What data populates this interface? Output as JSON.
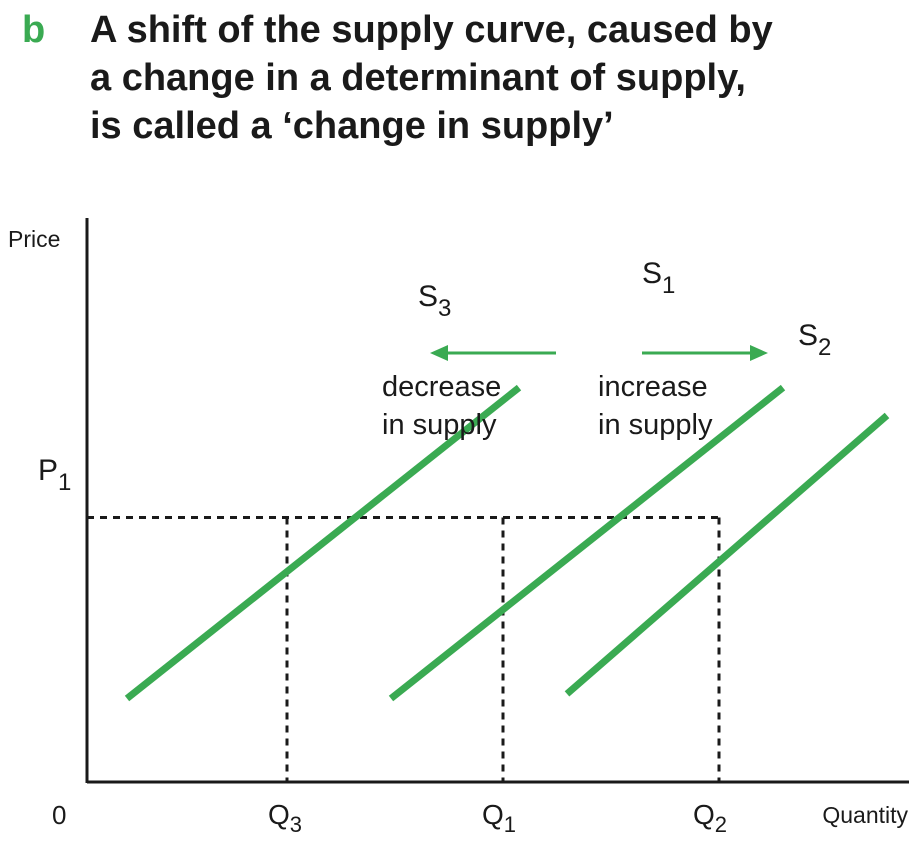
{
  "header": {
    "letter": "b",
    "title_lines": [
      "A shift of the supply curve, caused by",
      "a change in a determinant of supply,",
      "is called a ‘change in supply’"
    ]
  },
  "colors": {
    "accent": "#3aaa52",
    "ink": "#1a1a1a"
  },
  "chart_data": {
    "type": "line",
    "xlabel": "Quantity",
    "ylabel": "Price",
    "origin_label": "0",
    "xlim": [
      0,
      10
    ],
    "ylim": [
      0,
      10
    ],
    "grid": false,
    "series": [
      {
        "name": "S",
        "sub": "3",
        "x": [
          0.5,
          5.4
        ],
        "y": [
          1.8,
          8.5
        ]
      },
      {
        "name": "S",
        "sub": "1",
        "x": [
          3.8,
          8.7
        ],
        "y": [
          1.8,
          8.5
        ]
      },
      {
        "name": "S",
        "sub": "2",
        "x": [
          6.0,
          10.0
        ],
        "y": [
          1.9,
          7.9
        ]
      }
    ],
    "price_level": {
      "label": "P",
      "sub": "1",
      "y": 5.7
    },
    "quantities": [
      {
        "label": "Q",
        "sub": "3",
        "x": 2.5
      },
      {
        "label": "Q",
        "sub": "1",
        "x": 5.2
      },
      {
        "label": "Q",
        "sub": "2",
        "x": 7.9
      }
    ],
    "annotations": [
      {
        "line1": "decrease",
        "line2": "in supply",
        "direction": "left"
      },
      {
        "line1": "increase",
        "line2": "in supply",
        "direction": "right"
      }
    ]
  }
}
